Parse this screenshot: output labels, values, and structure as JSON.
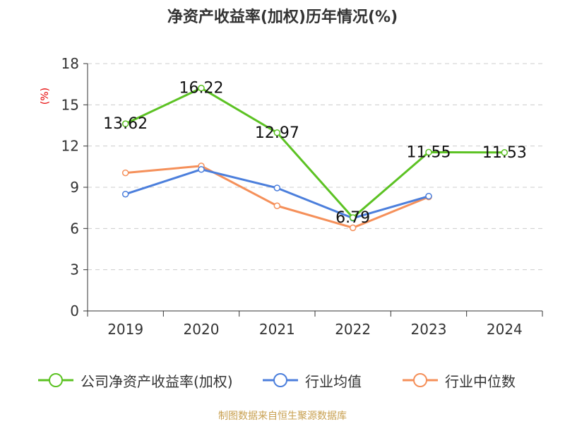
{
  "title": "净资产收益率(加权)历年情况(%)",
  "unit_label": "(%)",
  "source_note": "制图数据来自恒生聚源数据库",
  "chart_data": {
    "type": "line",
    "categories": [
      "2019",
      "2020",
      "2021",
      "2022",
      "2023",
      "2024"
    ],
    "ylim": [
      0,
      18
    ],
    "yticks": [
      0,
      3,
      6,
      9,
      12,
      15,
      18
    ],
    "grid": true,
    "legend_position": "bottom",
    "series": [
      {
        "name": "公司净资产收益率(加权)",
        "color": "#5cc223",
        "values": [
          13.62,
          16.22,
          12.97,
          6.79,
          11.55,
          11.53
        ],
        "labels": [
          "13.62",
          "16.22",
          "12.97",
          "6.79",
          "11.55",
          "11.53"
        ]
      },
      {
        "name": "行业均值",
        "color": "#4c7fdc",
        "values": [
          8.5,
          10.3,
          8.95,
          6.75,
          8.35,
          null
        ]
      },
      {
        "name": "行业中位数",
        "color": "#f5905a",
        "values": [
          10.05,
          10.55,
          7.65,
          6.05,
          8.3,
          null
        ]
      }
    ]
  }
}
